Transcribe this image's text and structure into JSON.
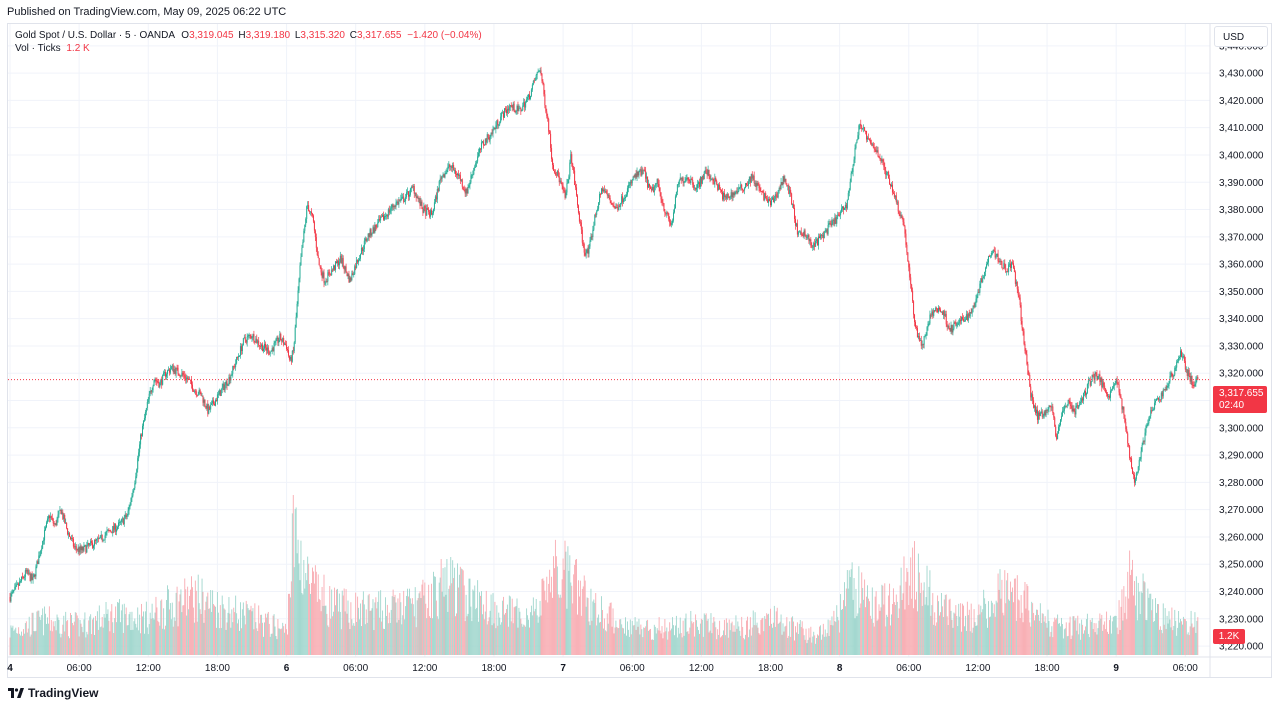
{
  "header": {
    "published": "Published on TradingView.com, May 09, 2025 06:22 UTC"
  },
  "legend": {
    "symbol": "Gold Spot / U.S. Dollar · 5 · OANDA",
    "o_label": "O",
    "o_value": "3,319.045",
    "h_label": "H",
    "h_value": "3,319.180",
    "l_label": "L",
    "l_value": "3,315.320",
    "c_label": "C",
    "c_value": "3,317.655",
    "change": "−1.420 (−0.04%)",
    "vol_label": "Vol · Ticks",
    "vol_value": "1.2 K"
  },
  "currency_button": "USD",
  "last_price": {
    "price": "3,317.655",
    "countdown": "02:40"
  },
  "volume_badge": "1.2K",
  "footer": {
    "brand": "TradingView",
    "logo_icon": "tradingview-logo-icon"
  },
  "colors": {
    "up": "#22ab94",
    "down": "#f23645",
    "grid": "#f0f3fa",
    "up_vol": "#9fd6cd",
    "down_vol": "#f8abb1"
  },
  "chart_data": {
    "type": "candlestick",
    "title": "Gold Spot / U.S. Dollar",
    "interval": "5",
    "ylim": [
      3216,
      3448
    ],
    "y_ticks": [
      3220,
      3230,
      3240,
      3250,
      3260,
      3270,
      3280,
      3290,
      3300,
      3310,
      3320,
      3330,
      3340,
      3350,
      3360,
      3370,
      3380,
      3390,
      3400,
      3410,
      3420,
      3430,
      3440
    ],
    "y_tick_labels": [
      "3,220.000",
      "3,230.000",
      "3,240.000",
      "3,250.000",
      "3,260.000",
      "3,270.000",
      "3,280.000",
      "3,290.000",
      "3,300.000",
      "3,310.000",
      "3,320.000",
      "3,330.000",
      "3,340.000",
      "3,350.000",
      "3,360.000",
      "3,370.000",
      "3,380.000",
      "3,390.000",
      "3,400.000",
      "3,410.000",
      "3,420.000",
      "3,430.000",
      "3,440.000"
    ],
    "x_tick_labels": [
      "4",
      "06:00",
      "12:00",
      "18:00",
      "6",
      "06:00",
      "12:00",
      "18:00",
      "7",
      "06:00",
      "12:00",
      "18:00",
      "8",
      "06:00",
      "12:00",
      "18:00",
      "9",
      "06:00"
    ],
    "x_tick_hours": [
      0,
      6,
      12,
      18,
      24,
      30,
      36,
      42,
      48,
      54,
      60,
      66,
      72,
      78,
      84,
      90,
      96,
      102
    ],
    "x_range_hours": [
      0,
      103.1
    ],
    "last_close": 3317.655,
    "price_path": [
      [
        0.0,
        3238
      ],
      [
        0.7,
        3242
      ],
      [
        1.4,
        3247
      ],
      [
        2.0,
        3244
      ],
      [
        2.8,
        3258
      ],
      [
        3.4,
        3268
      ],
      [
        3.9,
        3264
      ],
      [
        4.4,
        3270
      ],
      [
        5.0,
        3262
      ],
      [
        5.6,
        3256
      ],
      [
        6.2,
        3255
      ],
      [
        7.0,
        3257
      ],
      [
        7.8,
        3259
      ],
      [
        8.6,
        3262
      ],
      [
        9.4,
        3264
      ],
      [
        10.2,
        3268
      ],
      [
        10.8,
        3280
      ],
      [
        11.4,
        3298
      ],
      [
        12.0,
        3310
      ],
      [
        12.5,
        3318
      ],
      [
        13.0,
        3316
      ],
      [
        13.5,
        3320
      ],
      [
        14.0,
        3322
      ],
      [
        14.8,
        3320
      ],
      [
        15.4,
        3318
      ],
      [
        16.0,
        3314
      ],
      [
        16.6,
        3312
      ],
      [
        17.2,
        3306
      ],
      [
        17.8,
        3310
      ],
      [
        18.4,
        3314
      ],
      [
        19.0,
        3318
      ],
      [
        19.6,
        3324
      ],
      [
        20.3,
        3332
      ],
      [
        21.0,
        3334
      ],
      [
        21.8,
        3330
      ],
      [
        22.6,
        3328
      ],
      [
        23.4,
        3333
      ],
      [
        24.0,
        3330
      ],
      [
        24.3,
        3324
      ],
      [
        24.6,
        3328
      ],
      [
        25.2,
        3360
      ],
      [
        25.8,
        3382
      ],
      [
        26.3,
        3376
      ],
      [
        26.8,
        3360
      ],
      [
        27.3,
        3354
      ],
      [
        28.0,
        3358
      ],
      [
        28.7,
        3362
      ],
      [
        29.5,
        3354
      ],
      [
        30.2,
        3362
      ],
      [
        31.0,
        3370
      ],
      [
        31.8,
        3374
      ],
      [
        32.6,
        3378
      ],
      [
        33.4,
        3382
      ],
      [
        34.2,
        3384
      ],
      [
        35.0,
        3388
      ],
      [
        35.8,
        3380
      ],
      [
        36.6,
        3378
      ],
      [
        37.4,
        3392
      ],
      [
        38.2,
        3396
      ],
      [
        39.0,
        3392
      ],
      [
        39.6,
        3386
      ],
      [
        40.3,
        3396
      ],
      [
        41.0,
        3404
      ],
      [
        41.8,
        3408
      ],
      [
        42.6,
        3414
      ],
      [
        43.4,
        3418
      ],
      [
        44.2,
        3416
      ],
      [
        45.0,
        3421
      ],
      [
        45.6,
        3428
      ],
      [
        46.0,
        3432
      ],
      [
        46.4,
        3420
      ],
      [
        46.7,
        3412
      ],
      [
        47.1,
        3396
      ],
      [
        47.6,
        3392
      ],
      [
        48.2,
        3384
      ],
      [
        48.7,
        3400
      ],
      [
        49.3,
        3380
      ],
      [
        49.8,
        3365
      ],
      [
        50.2,
        3364
      ],
      [
        50.8,
        3378
      ],
      [
        51.4,
        3388
      ],
      [
        52.0,
        3384
      ],
      [
        52.6,
        3380
      ],
      [
        53.4,
        3386
      ],
      [
        54.2,
        3392
      ],
      [
        55.0,
        3394
      ],
      [
        55.6,
        3386
      ],
      [
        56.2,
        3390
      ],
      [
        56.8,
        3380
      ],
      [
        57.4,
        3374
      ],
      [
        58.0,
        3390
      ],
      [
        58.8,
        3392
      ],
      [
        59.6,
        3388
      ],
      [
        60.4,
        3394
      ],
      [
        61.2,
        3390
      ],
      [
        62.0,
        3384
      ],
      [
        62.8,
        3386
      ],
      [
        63.6,
        3388
      ],
      [
        64.4,
        3392
      ],
      [
        65.2,
        3386
      ],
      [
        66.0,
        3382
      ],
      [
        66.6,
        3386
      ],
      [
        67.2,
        3392
      ],
      [
        67.8,
        3384
      ],
      [
        68.4,
        3370
      ],
      [
        69.0,
        3372
      ],
      [
        69.6,
        3366
      ],
      [
        70.4,
        3370
      ],
      [
        71.2,
        3374
      ],
      [
        72.0,
        3378
      ],
      [
        72.6,
        3382
      ],
      [
        73.0,
        3392
      ],
      [
        73.4,
        3404
      ],
      [
        73.8,
        3412
      ],
      [
        74.2,
        3408
      ],
      [
        74.6,
        3404
      ],
      [
        75.2,
        3402
      ],
      [
        75.8,
        3396
      ],
      [
        76.4,
        3390
      ],
      [
        77.0,
        3382
      ],
      [
        77.6,
        3374
      ],
      [
        78.0,
        3358
      ],
      [
        78.6,
        3336
      ],
      [
        79.2,
        3330
      ],
      [
        79.8,
        3340
      ],
      [
        80.4,
        3344
      ],
      [
        81.0,
        3342
      ],
      [
        81.6,
        3336
      ],
      [
        82.2,
        3338
      ],
      [
        82.8,
        3340
      ],
      [
        83.4,
        3342
      ],
      [
        84.0,
        3350
      ],
      [
        84.6,
        3358
      ],
      [
        85.2,
        3366
      ],
      [
        85.8,
        3362
      ],
      [
        86.4,
        3358
      ],
      [
        87.0,
        3360
      ],
      [
        87.6,
        3346
      ],
      [
        88.1,
        3328
      ],
      [
        88.6,
        3312
      ],
      [
        89.2,
        3304
      ],
      [
        89.8,
        3306
      ],
      [
        90.4,
        3308
      ],
      [
        90.8,
        3296
      ],
      [
        91.2,
        3304
      ],
      [
        91.8,
        3310
      ],
      [
        92.4,
        3306
      ],
      [
        93.0,
        3310
      ],
      [
        93.6,
        3316
      ],
      [
        94.2,
        3320
      ],
      [
        94.8,
        3316
      ],
      [
        95.4,
        3312
      ],
      [
        96.0,
        3318
      ],
      [
        96.6,
        3306
      ],
      [
        97.1,
        3292
      ],
      [
        97.6,
        3280
      ],
      [
        98.1,
        3290
      ],
      [
        98.7,
        3302
      ],
      [
        99.3,
        3308
      ],
      [
        99.9,
        3312
      ],
      [
        100.5,
        3316
      ],
      [
        101.1,
        3322
      ],
      [
        101.6,
        3328
      ],
      [
        102.2,
        3320
      ],
      [
        102.7,
        3316
      ],
      [
        103.1,
        3317.655
      ]
    ],
    "volume_path": [
      [
        0,
        0.18
      ],
      [
        3,
        0.26
      ],
      [
        6,
        0.22
      ],
      [
        9,
        0.3
      ],
      [
        12,
        0.28
      ],
      [
        14,
        0.38
      ],
      [
        16,
        0.44
      ],
      [
        18,
        0.36
      ],
      [
        21,
        0.28
      ],
      [
        24,
        0.18
      ],
      [
        24.6,
        0.92
      ],
      [
        26,
        0.52
      ],
      [
        28,
        0.36
      ],
      [
        30,
        0.34
      ],
      [
        33,
        0.34
      ],
      [
        36,
        0.4
      ],
      [
        38,
        0.56
      ],
      [
        40,
        0.42
      ],
      [
        42,
        0.36
      ],
      [
        44,
        0.3
      ],
      [
        46,
        0.34
      ],
      [
        46.6,
        0.58
      ],
      [
        48,
        0.62
      ],
      [
        50,
        0.42
      ],
      [
        52,
        0.28
      ],
      [
        54,
        0.22
      ],
      [
        56,
        0.2
      ],
      [
        58,
        0.22
      ],
      [
        60,
        0.24
      ],
      [
        62,
        0.2
      ],
      [
        64,
        0.22
      ],
      [
        66,
        0.3
      ],
      [
        68,
        0.2
      ],
      [
        70,
        0.14
      ],
      [
        72,
        0.3
      ],
      [
        73,
        0.52
      ],
      [
        75,
        0.36
      ],
      [
        77,
        0.4
      ],
      [
        78.2,
        0.66
      ],
      [
        80,
        0.42
      ],
      [
        82,
        0.26
      ],
      [
        84,
        0.3
      ],
      [
        86,
        0.46
      ],
      [
        88,
        0.42
      ],
      [
        90,
        0.24
      ],
      [
        92,
        0.2
      ],
      [
        94,
        0.22
      ],
      [
        96,
        0.24
      ],
      [
        97.2,
        0.56
      ],
      [
        98,
        0.46
      ],
      [
        100,
        0.3
      ],
      [
        102,
        0.24
      ],
      [
        103.1,
        0.22
      ]
    ],
    "volume_max_ticks": "1.2 K"
  }
}
